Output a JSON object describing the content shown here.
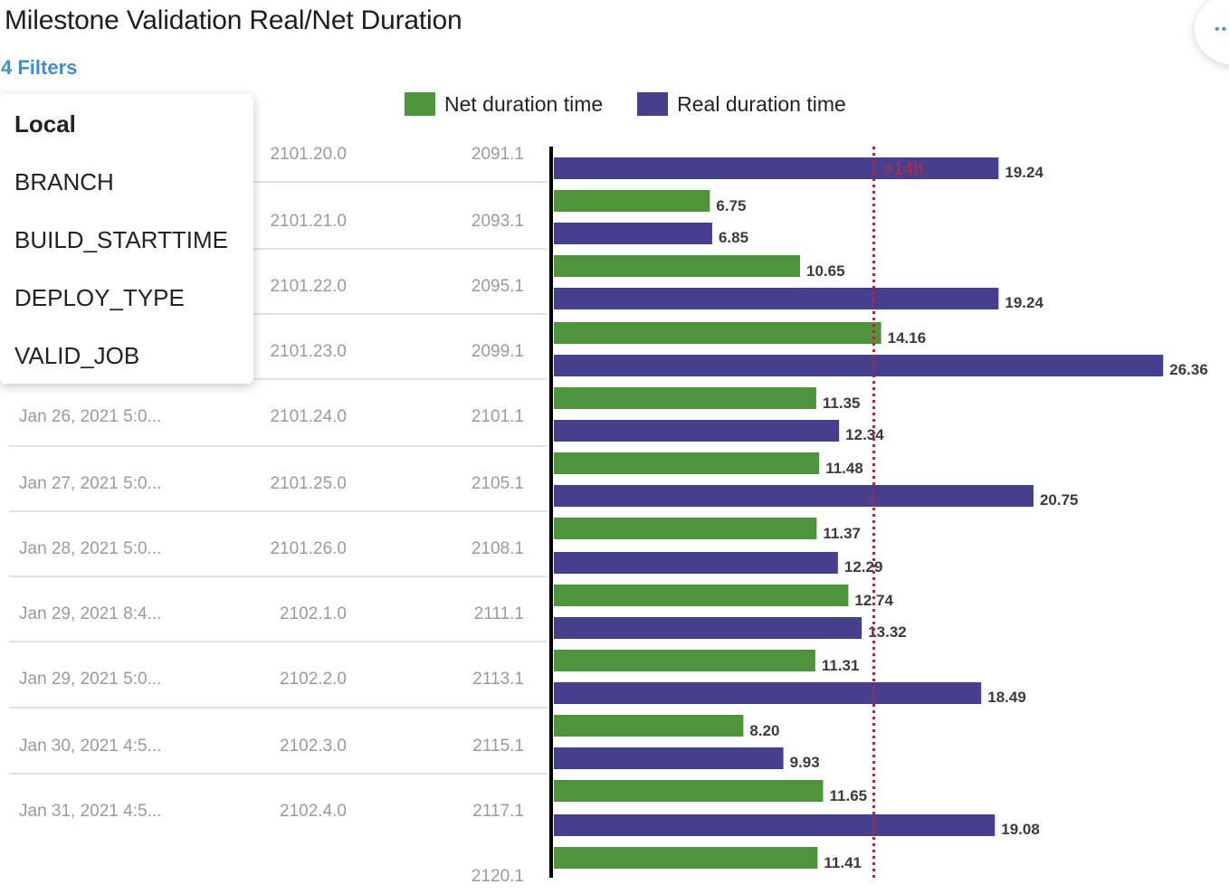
{
  "title": "Milestone Validation Real/Net Duration",
  "filters_label": "4 Filters",
  "corner_button_glyph": "••",
  "dropdown": {
    "header": "Local",
    "items": [
      "BRANCH",
      "BUILD_STARTTIME",
      "DEPLOY_TYPE",
      "VALID_JOB"
    ]
  },
  "colors": {
    "net": "#4e943a",
    "real": "#453f8e",
    "threshold": "#b0224a"
  },
  "chart_data": {
    "type": "bar",
    "orientation": "horizontal",
    "legend": [
      "Net duration time",
      "Real duration time"
    ],
    "legend_position": "top",
    "threshold": {
      "value": 14,
      "label": ">14h"
    },
    "rows": [
      {
        "date": "",
        "branch": "2101.20.0",
        "build": "2091.1",
        "net": null,
        "real": 19.24
      },
      {
        "date": "",
        "branch": "2101.21.0",
        "build": "2093.1",
        "net": 6.75,
        "real": 6.85
      },
      {
        "date": "",
        "branch": "2101.22.0",
        "build": "2095.1",
        "net": 10.65,
        "real": 19.24
      },
      {
        "date": "",
        "branch": "2101.23.0",
        "build": "2099.1",
        "net": 14.16,
        "real": 26.36
      },
      {
        "date": "Jan 26, 2021 5:0...",
        "branch": "2101.24.0",
        "build": "2101.1",
        "net": 11.35,
        "real": 12.34
      },
      {
        "date": "Jan 27, 2021 5:0...",
        "branch": "2101.25.0",
        "build": "2105.1",
        "net": 11.48,
        "real": 20.75
      },
      {
        "date": "Jan 28, 2021 5:0...",
        "branch": "2101.26.0",
        "build": "2108.1",
        "net": 11.37,
        "real": 12.29
      },
      {
        "date": "Jan 29, 2021 8:4...",
        "branch": "2102.1.0",
        "build": "2111.1",
        "net": 12.74,
        "real": 13.32
      },
      {
        "date": "Jan 29, 2021 5:0...",
        "branch": "2102.2.0",
        "build": "2113.1",
        "net": 11.31,
        "real": 18.49
      },
      {
        "date": "Jan 30, 2021 4:5...",
        "branch": "2102.3.0",
        "build": "2115.1",
        "net": 8.2,
        "real": 9.93
      },
      {
        "date": "Jan 31, 2021 4:5...",
        "branch": "2102.4.0",
        "build": "2117.1",
        "net": 11.65,
        "real": 19.08
      },
      {
        "date": "",
        "branch": "",
        "build": "2120.1",
        "net": 11.41,
        "real": null
      }
    ],
    "value_labels_net": [
      "",
      "6.75",
      "10.65",
      "14.16",
      "11.35",
      "11.48",
      "11.37",
      "12.74",
      "11.31",
      "8.20",
      "11.65",
      "11.41"
    ],
    "value_labels_real": [
      "19.24",
      "6.85",
      "19.24",
      "26.36",
      "12.34",
      "20.75",
      "12.29",
      "13.32",
      "18.49",
      "9.93",
      "19.08",
      ""
    ]
  }
}
